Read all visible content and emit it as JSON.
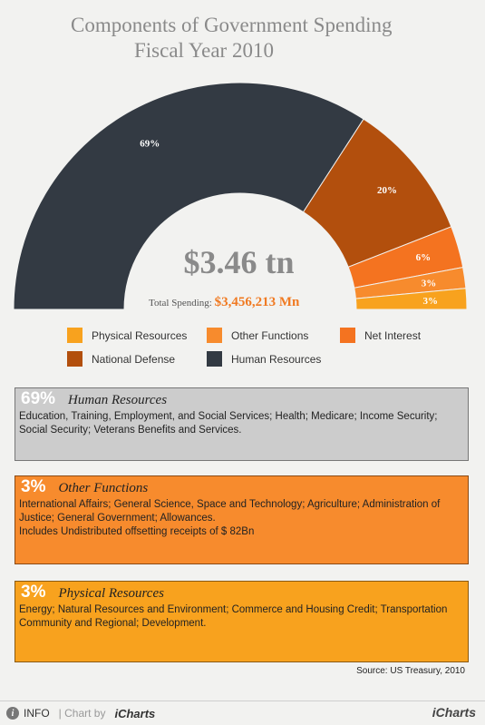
{
  "title": {
    "line1": "Components of Government Spending",
    "line2": "Fiscal Year 2010"
  },
  "center": {
    "big_value": "$3.46 tn",
    "total_label": "Total Spending:",
    "total_value": "$3,456,213 Mn"
  },
  "colors": {
    "Human Resources": "#333a43",
    "National Defense": "#b24f0d",
    "Net Interest": "#f47320",
    "Other Functions": "#f78b2d",
    "Physical Resources": "#f8a21e"
  },
  "chart_data": {
    "type": "pie",
    "subtype": "semicircle-donut",
    "categories": [
      "Human Resources",
      "National Defense",
      "Net Interest",
      "Other Functions",
      "Physical Resources"
    ],
    "values": [
      69,
      20,
      6,
      3,
      3
    ],
    "labels": [
      "69%",
      "20%",
      "6%",
      "3%",
      "3%"
    ],
    "unit": "%"
  },
  "legend": [
    {
      "label": "Physical Resources"
    },
    {
      "label": "Other Functions"
    },
    {
      "label": "Net Interest"
    },
    {
      "label": "National Defense"
    },
    {
      "label": "Human Resources"
    }
  ],
  "details": [
    {
      "pct": "69%",
      "name": "Human Resources",
      "lines": [
        "Education, Training, Employment, and Social Services; Health; Medicare; Income Security; Social Security; Veterans Benefits and Services."
      ],
      "bg": "#cccccc"
    },
    {
      "pct": "3%",
      "name": "Other Functions",
      "lines": [
        "International Affairs; General Science, Space and Technology; Agriculture; Administration of Justice; General Government; Allowances.",
        "Includes Undistributed offsetting receipts of $ 82Bn"
      ],
      "bg": "#f78b2d"
    },
    {
      "pct": "3%",
      "name": "Physical Resources",
      "lines": [
        "Energy; Natural Resources and Environment; Commerce and Housing Credit; Transportation Community and Regional; Development."
      ],
      "bg": "#f8a21e"
    }
  ],
  "source": "Source: US Treasury, 2010",
  "footer": {
    "info_icon": "i",
    "info": "INFO",
    "chart_by": "| Chart by",
    "brand": "iCharts",
    "brand_right": "iCharts"
  }
}
